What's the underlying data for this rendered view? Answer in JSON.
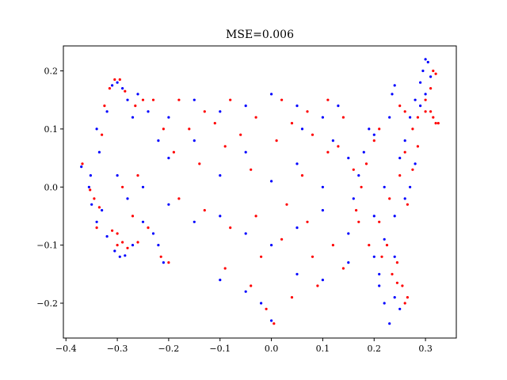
{
  "chart_data": {
    "type": "scatter",
    "title": "MSE=0.006",
    "xlabel": "",
    "ylabel": "",
    "xlim": [
      -0.405,
      0.36
    ],
    "ylim": [
      -0.26,
      0.243
    ],
    "xticks": [
      {
        "value": -0.4,
        "label": "−0.4"
      },
      {
        "value": -0.3,
        "label": "−0.3"
      },
      {
        "value": -0.2,
        "label": "−0.2"
      },
      {
        "value": -0.1,
        "label": "−0.1"
      },
      {
        "value": 0.0,
        "label": "0.0"
      },
      {
        "value": 0.1,
        "label": "0.1"
      },
      {
        "value": 0.2,
        "label": "0.2"
      },
      {
        "value": 0.3,
        "label": "0.3"
      }
    ],
    "yticks": [
      {
        "value": -0.2,
        "label": "−0.2"
      },
      {
        "value": -0.1,
        "label": "−0.1"
      },
      {
        "value": 0.0,
        "label": "0.0"
      },
      {
        "value": 0.1,
        "label": "0.1"
      },
      {
        "value": 0.2,
        "label": "0.2"
      }
    ],
    "grid": false,
    "legend": "none",
    "series": [
      {
        "color": "#0000ff",
        "points": [
          [
            -0.37,
            0.035
          ],
          [
            -0.355,
            0.0
          ],
          [
            -0.352,
            0.02
          ],
          [
            -0.35,
            -0.03
          ],
          [
            -0.34,
            -0.06
          ],
          [
            -0.33,
            -0.04
          ],
          [
            -0.32,
            -0.085
          ],
          [
            -0.305,
            -0.11
          ],
          [
            -0.295,
            -0.12
          ],
          [
            -0.285,
            -0.118
          ],
          [
            -0.27,
            -0.1
          ],
          [
            -0.25,
            -0.06
          ],
          [
            -0.23,
            -0.08
          ],
          [
            -0.22,
            -0.1
          ],
          [
            -0.21,
            -0.13
          ],
          [
            -0.34,
            0.1
          ],
          [
            -0.335,
            0.06
          ],
          [
            -0.32,
            0.13
          ],
          [
            -0.31,
            0.175
          ],
          [
            -0.3,
            0.18
          ],
          [
            -0.29,
            0.17
          ],
          [
            -0.28,
            0.15
          ],
          [
            -0.27,
            0.12
          ],
          [
            -0.26,
            0.16
          ],
          [
            -0.24,
            0.13
          ],
          [
            -0.2,
            0.12
          ],
          [
            -0.15,
            0.15
          ],
          [
            -0.1,
            0.13
          ],
          [
            -0.05,
            0.14
          ],
          [
            0.0,
            0.16
          ],
          [
            0.05,
            0.14
          ],
          [
            0.1,
            0.12
          ],
          [
            0.13,
            0.14
          ],
          [
            -0.2,
            0.05
          ],
          [
            -0.15,
            0.08
          ],
          [
            -0.1,
            0.02
          ],
          [
            -0.05,
            0.06
          ],
          [
            0.0,
            0.01
          ],
          [
            0.05,
            0.04
          ],
          [
            0.1,
            0.0
          ],
          [
            0.15,
            0.05
          ],
          [
            -0.2,
            -0.03
          ],
          [
            -0.15,
            -0.06
          ],
          [
            -0.1,
            -0.05
          ],
          [
            -0.05,
            -0.08
          ],
          [
            0.0,
            -0.1
          ],
          [
            0.05,
            -0.07
          ],
          [
            0.1,
            -0.04
          ],
          [
            0.15,
            -0.08
          ],
          [
            -0.1,
            -0.16
          ],
          [
            -0.05,
            -0.18
          ],
          [
            -0.02,
            -0.2
          ],
          [
            0.0,
            -0.23
          ],
          [
            0.05,
            -0.15
          ],
          [
            0.1,
            -0.16
          ],
          [
            0.15,
            -0.13
          ],
          [
            0.2,
            -0.12
          ],
          [
            0.21,
            -0.17
          ],
          [
            0.22,
            -0.2
          ],
          [
            0.23,
            -0.235
          ],
          [
            0.24,
            -0.19
          ],
          [
            0.25,
            -0.21
          ],
          [
            0.2,
            -0.05
          ],
          [
            0.22,
            0.0
          ],
          [
            0.24,
            -0.05
          ],
          [
            0.25,
            0.05
          ],
          [
            0.26,
            0.08
          ],
          [
            0.27,
            0.12
          ],
          [
            0.28,
            0.15
          ],
          [
            0.29,
            0.18
          ],
          [
            0.295,
            0.2
          ],
          [
            0.3,
            0.22
          ],
          [
            0.305,
            0.215
          ],
          [
            0.31,
            0.19
          ],
          [
            0.3,
            0.16
          ],
          [
            0.29,
            0.14
          ],
          [
            0.23,
            0.12
          ],
          [
            0.235,
            0.16
          ],
          [
            0.24,
            0.175
          ],
          [
            0.2,
            0.09
          ],
          [
            0.19,
            0.1
          ],
          [
            0.18,
            0.06
          ],
          [
            0.17,
            0.02
          ],
          [
            0.16,
            -0.02
          ],
          [
            0.26,
            -0.02
          ],
          [
            0.27,
            0.0
          ],
          [
            0.28,
            0.04
          ],
          [
            0.22,
            -0.09
          ],
          [
            0.24,
            -0.12
          ],
          [
            0.21,
            -0.15
          ],
          [
            -0.25,
            0.0
          ],
          [
            -0.3,
            0.02
          ],
          [
            -0.28,
            -0.02
          ],
          [
            -0.22,
            0.08
          ],
          [
            0.06,
            0.1
          ],
          [
            0.12,
            0.08
          ]
        ]
      },
      {
        "color": "#ff0000",
        "points": [
          [
            -0.368,
            0.04
          ],
          [
            -0.353,
            -0.005
          ],
          [
            -0.345,
            -0.02
          ],
          [
            -0.34,
            -0.07
          ],
          [
            -0.335,
            -0.035
          ],
          [
            -0.3,
            -0.08
          ],
          [
            -0.29,
            -0.095
          ],
          [
            -0.28,
            -0.105
          ],
          [
            -0.3,
            -0.1
          ],
          [
            -0.31,
            -0.075
          ],
          [
            -0.26,
            -0.095
          ],
          [
            -0.24,
            -0.07
          ],
          [
            -0.215,
            -0.12
          ],
          [
            -0.2,
            -0.13
          ],
          [
            -0.33,
            0.09
          ],
          [
            -0.325,
            0.14
          ],
          [
            -0.315,
            0.17
          ],
          [
            -0.305,
            0.185
          ],
          [
            -0.295,
            0.185
          ],
          [
            -0.285,
            0.165
          ],
          [
            -0.265,
            0.14
          ],
          [
            -0.25,
            0.15
          ],
          [
            -0.23,
            0.15
          ],
          [
            -0.18,
            0.15
          ],
          [
            -0.13,
            0.13
          ],
          [
            -0.08,
            0.15
          ],
          [
            -0.03,
            0.12
          ],
          [
            0.02,
            0.15
          ],
          [
            0.07,
            0.13
          ],
          [
            0.11,
            0.15
          ],
          [
            0.14,
            0.12
          ],
          [
            -0.19,
            0.06
          ],
          [
            -0.14,
            0.04
          ],
          [
            -0.09,
            0.07
          ],
          [
            -0.04,
            0.03
          ],
          [
            0.01,
            0.08
          ],
          [
            0.06,
            0.02
          ],
          [
            0.11,
            0.06
          ],
          [
            0.16,
            0.03
          ],
          [
            -0.18,
            -0.02
          ],
          [
            -0.13,
            -0.04
          ],
          [
            -0.08,
            -0.07
          ],
          [
            -0.03,
            -0.05
          ],
          [
            0.02,
            -0.09
          ],
          [
            0.07,
            -0.06
          ],
          [
            0.12,
            -0.1
          ],
          [
            0.17,
            -0.06
          ],
          [
            -0.09,
            -0.14
          ],
          [
            -0.04,
            -0.17
          ],
          [
            -0.01,
            -0.21
          ],
          [
            0.005,
            -0.235
          ],
          [
            0.04,
            -0.19
          ],
          [
            0.09,
            -0.17
          ],
          [
            0.14,
            -0.14
          ],
          [
            0.19,
            -0.1
          ],
          [
            0.235,
            -0.15
          ],
          [
            0.245,
            -0.165
          ],
          [
            0.255,
            -0.17
          ],
          [
            0.26,
            -0.2
          ],
          [
            0.265,
            -0.19
          ],
          [
            0.21,
            -0.06
          ],
          [
            0.23,
            -0.02
          ],
          [
            0.25,
            0.02
          ],
          [
            0.26,
            0.06
          ],
          [
            0.275,
            0.1
          ],
          [
            0.285,
            0.12
          ],
          [
            0.3,
            0.13
          ],
          [
            0.31,
            0.13
          ],
          [
            0.315,
            0.12
          ],
          [
            0.32,
            0.11
          ],
          [
            0.325,
            0.11
          ],
          [
            0.31,
            0.17
          ],
          [
            0.315,
            0.2
          ],
          [
            0.32,
            0.195
          ],
          [
            0.3,
            0.15
          ],
          [
            0.26,
            0.13
          ],
          [
            0.25,
            0.14
          ],
          [
            0.21,
            0.1
          ],
          [
            0.2,
            0.08
          ],
          [
            0.185,
            0.04
          ],
          [
            0.175,
            0.0
          ],
          [
            0.165,
            -0.04
          ],
          [
            0.265,
            -0.03
          ],
          [
            0.275,
            0.03
          ],
          [
            0.285,
            0.07
          ],
          [
            0.225,
            -0.1
          ],
          [
            0.245,
            -0.13
          ],
          [
            0.215,
            -0.12
          ],
          [
            -0.26,
            0.02
          ],
          [
            -0.29,
            0.0
          ],
          [
            -0.27,
            -0.05
          ],
          [
            -0.21,
            0.1
          ],
          [
            0.04,
            0.11
          ],
          [
            0.08,
            0.09
          ],
          [
            0.13,
            0.07
          ],
          [
            -0.06,
            0.09
          ],
          [
            -0.11,
            0.11
          ],
          [
            -0.16,
            0.1
          ],
          [
            0.03,
            -0.03
          ],
          [
            -0.02,
            -0.12
          ],
          [
            0.08,
            -0.12
          ]
        ]
      }
    ]
  }
}
